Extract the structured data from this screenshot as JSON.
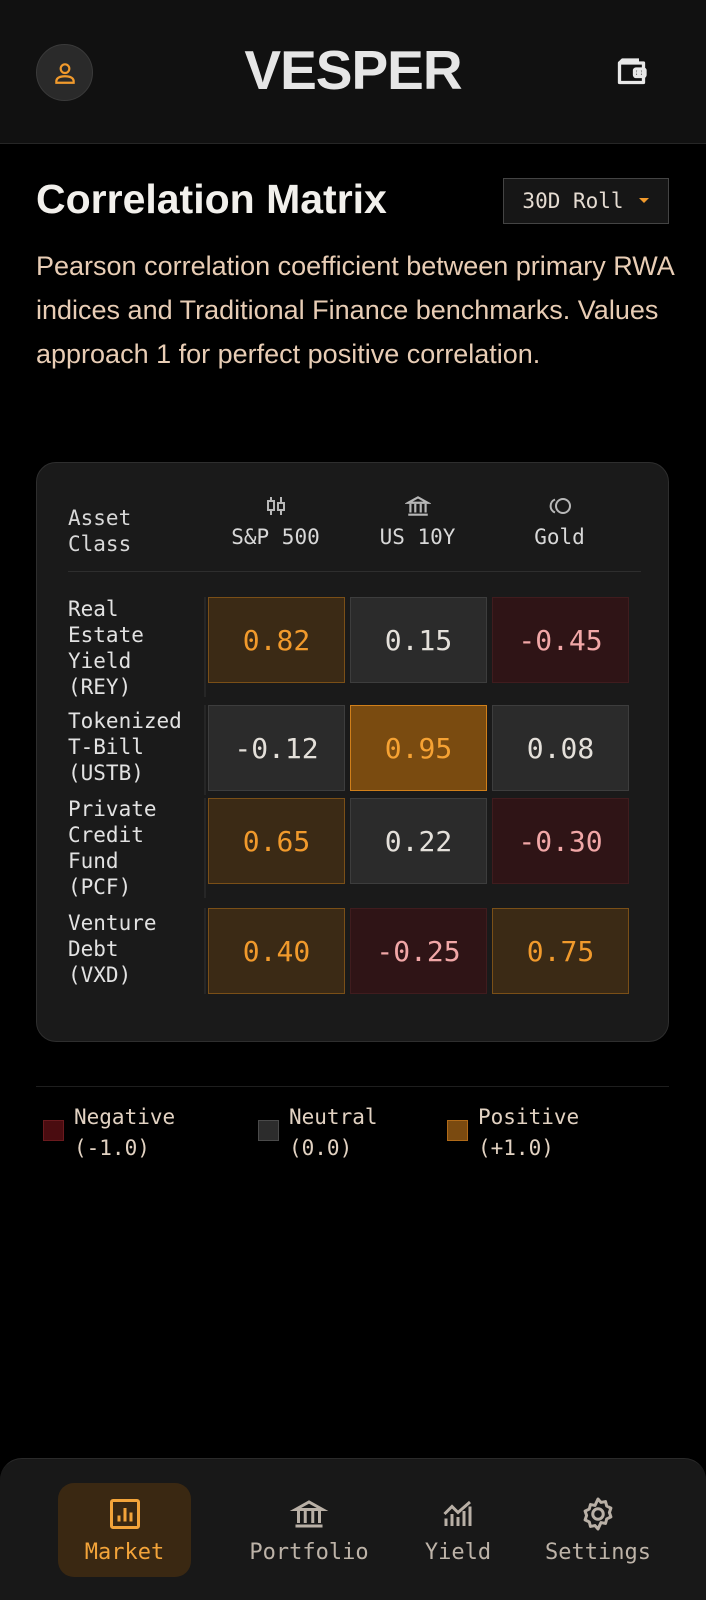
{
  "header": {
    "brand": "VESPER",
    "avatar_icon": "user-icon",
    "wallet_icon": "wallet-icon"
  },
  "page": {
    "title": "Correlation Matrix",
    "period": "30D Roll",
    "description": "Pearson correlation coefficient between primary RWA indices and Traditional Finance benchmarks. Values approach 1 for perfect positive correlation."
  },
  "matrix": {
    "corner_label_line1": "Asset",
    "corner_label_line2": "Class",
    "columns": [
      {
        "label": "S&P 500",
        "icon": "candlestick-icon"
      },
      {
        "label": "US 10Y",
        "icon": "bank-icon"
      },
      {
        "label": "Gold",
        "icon": "coins-icon"
      }
    ],
    "rows": [
      {
        "lines": [
          "Real",
          "Estate",
          "Yield",
          "(REY)"
        ],
        "values": [
          "0.82",
          "0.15",
          "-0.45"
        ]
      },
      {
        "lines": [
          "Tokenized",
          "T-Bill",
          "(USTB)"
        ],
        "values": [
          "-0.12",
          "0.95",
          "0.08"
        ]
      },
      {
        "lines": [
          "Private",
          "Credit",
          "Fund",
          "(PCF)"
        ],
        "values": [
          "0.65",
          "0.22",
          "-0.30"
        ]
      },
      {
        "lines": [
          "Venture",
          "Debt",
          "(VXD)"
        ],
        "values": [
          "0.40",
          "-0.25",
          "0.75"
        ]
      }
    ]
  },
  "legend": [
    {
      "label": "Negative",
      "value": "(-1.0)",
      "color": "#4a0c10"
    },
    {
      "label": "Neutral",
      "value": "(0.0)",
      "color": "#2c2c2c"
    },
    {
      "label": "Positive",
      "value": "(+1.0)",
      "color": "#7a4a10"
    }
  ],
  "nav": [
    {
      "label": "Market",
      "icon": "bar-chart-icon",
      "active": true
    },
    {
      "label": "Portfolio",
      "icon": "bank-icon",
      "active": false
    },
    {
      "label": "Yield",
      "icon": "trend-chart-icon",
      "active": false
    },
    {
      "label": "Settings",
      "icon": "gear-icon",
      "active": false
    }
  ]
}
